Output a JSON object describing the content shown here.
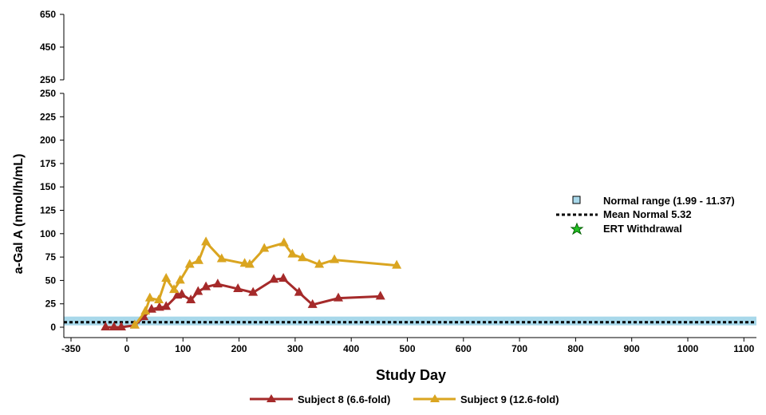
{
  "chart_data": {
    "type": "line",
    "xlabel": "Study Day",
    "ylabel": "a-Gal A (nmol/h/mL)",
    "x_ticks": [
      "-350",
      "0",
      "100",
      "200",
      "300",
      "400",
      "500",
      "600",
      "700",
      "800",
      "900",
      "1000",
      "1100"
    ],
    "y_ticks_lower": [
      0,
      25,
      50,
      75,
      100,
      125,
      150,
      175,
      200,
      225,
      250
    ],
    "y_ticks_upper": [
      250,
      450,
      650
    ],
    "ylim_lower": [
      0,
      250
    ],
    "ylim_upper": [
      250,
      650
    ],
    "normal_range": [
      1.99,
      11.37
    ],
    "mean_normal": 5.32,
    "colors": {
      "normal_range": "#a8d8ea",
      "subject8": "#a52a2a",
      "subject9": "#daa520"
    },
    "legend_right": [
      "Normal range (1.99 - 11.37)",
      "Mean Normal 5.32",
      "ERT Withdrawal"
    ],
    "legend_placement": "right / bottom",
    "series": [
      {
        "name": "Subject 8 (6.6-fold)",
        "x": [
          -38,
          -23,
          -10,
          14,
          30,
          44,
          58,
          70,
          90,
          98,
          114,
          127,
          141,
          162,
          198,
          225,
          262,
          279,
          307,
          331,
          377,
          452
        ],
        "y": [
          0,
          0,
          0,
          2,
          11,
          19,
          21,
          22,
          34,
          35,
          29,
          38,
          43,
          46,
          41,
          37,
          51,
          52,
          37,
          24,
          31,
          33
        ]
      },
      {
        "name": "Subject 9 (12.6-fold)",
        "x": [
          14,
          33,
          41,
          57,
          70,
          84,
          95,
          112,
          128,
          141,
          169,
          210,
          219,
          245,
          280,
          295,
          313,
          343,
          370,
          481
        ],
        "y": [
          2,
          17,
          31,
          29,
          52,
          40,
          50,
          67,
          71,
          91,
          73,
          68,
          67,
          84,
          90,
          78,
          74,
          67,
          72,
          66
        ]
      }
    ]
  }
}
